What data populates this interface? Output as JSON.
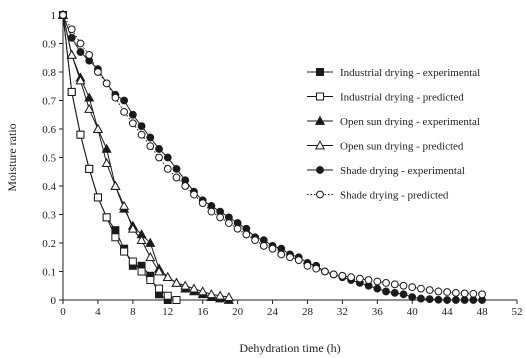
{
  "chart_data": {
    "type": "scatter",
    "title": "",
    "xlabel": "Dehydration time (h)",
    "ylabel": "Moisture ratio",
    "xlim": [
      0,
      52
    ],
    "ylim": [
      0,
      1
    ],
    "xticks": [
      0,
      4,
      8,
      12,
      16,
      20,
      24,
      28,
      32,
      36,
      40,
      44,
      48,
      52
    ],
    "yticks": [
      0,
      0.1,
      0.2,
      0.3,
      0.4,
      0.5,
      0.6,
      0.7,
      0.8,
      0.9,
      1
    ],
    "grid": false,
    "legend_position": "right",
    "series": [
      {
        "name": "Industrial drying - experimental",
        "marker": "square-filled",
        "line": "solid",
        "color": "#1a1a1a",
        "x": [
          0,
          1,
          2,
          3,
          4,
          5,
          6,
          7,
          8,
          9,
          10,
          11,
          12
        ],
        "y": [
          1.0,
          0.73,
          0.58,
          0.46,
          0.36,
          0.29,
          0.245,
          0.18,
          0.12,
          0.12,
          0.085,
          0.02,
          0.0
        ]
      },
      {
        "name": "Industrial drying - predicted",
        "marker": "square-open",
        "line": "solid",
        "color": "#1a1a1a",
        "x": [
          0,
          1,
          2,
          3,
          4,
          5,
          6,
          7,
          8,
          9,
          10,
          11,
          12,
          13
        ],
        "y": [
          1.0,
          0.73,
          0.58,
          0.46,
          0.36,
          0.29,
          0.22,
          0.17,
          0.135,
          0.1,
          0.07,
          0.04,
          0.015,
          0.0
        ]
      },
      {
        "name": "Open sun drying - experimental",
        "marker": "triangle-filled",
        "line": "solid",
        "color": "#1a1a1a",
        "x": [
          0,
          1,
          2,
          3,
          4,
          5,
          6,
          7,
          8,
          9,
          10,
          11,
          12,
          13,
          14,
          15,
          16,
          17,
          18,
          19
        ],
        "y": [
          1.0,
          0.86,
          0.78,
          0.71,
          0.6,
          0.53,
          0.4,
          0.32,
          0.26,
          0.23,
          0.2,
          0.11,
          0.08,
          0.06,
          0.04,
          0.03,
          0.02,
          0.01,
          0.005,
          0.0
        ]
      },
      {
        "name": "Open sun drying - predicted",
        "marker": "triangle-open",
        "line": "solid",
        "color": "#1a1a1a",
        "x": [
          0,
          1,
          2,
          3,
          4,
          5,
          6,
          7,
          8,
          9,
          10,
          11,
          12,
          13,
          14,
          15,
          16,
          17,
          18,
          19
        ],
        "y": [
          1.0,
          0.86,
          0.77,
          0.67,
          0.6,
          0.48,
          0.4,
          0.33,
          0.25,
          0.21,
          0.15,
          0.1,
          0.08,
          0.06,
          0.05,
          0.04,
          0.03,
          0.02,
          0.015,
          0.01
        ]
      },
      {
        "name": "Shade drying - experimental",
        "marker": "circle-filled",
        "line": "solid",
        "color": "#1a1a1a",
        "x": [
          0,
          1,
          2,
          3,
          4,
          5,
          6,
          7,
          8,
          9,
          10,
          11,
          12,
          13,
          14,
          15,
          16,
          17,
          18,
          19,
          20,
          21,
          22,
          23,
          24,
          25,
          26,
          27,
          28,
          29,
          30,
          31,
          32,
          33,
          34,
          35,
          36,
          37,
          38,
          39,
          40,
          41,
          42,
          43,
          44,
          45,
          46,
          47,
          48
        ],
        "y": [
          1.0,
          0.92,
          0.87,
          0.84,
          0.81,
          0.76,
          0.72,
          0.7,
          0.65,
          0.61,
          0.57,
          0.53,
          0.5,
          0.46,
          0.42,
          0.38,
          0.35,
          0.33,
          0.31,
          0.29,
          0.27,
          0.25,
          0.22,
          0.21,
          0.19,
          0.18,
          0.16,
          0.15,
          0.13,
          0.12,
          0.1,
          0.09,
          0.08,
          0.07,
          0.06,
          0.05,
          0.04,
          0.03,
          0.025,
          0.02,
          0.01,
          0.005,
          0.003,
          0.001,
          0.0,
          0.0,
          0.0,
          0.0,
          0.0
        ]
      },
      {
        "name": "Shade drying - predicted",
        "marker": "circle-open",
        "line": "dotted",
        "color": "#1a1a1a",
        "x": [
          0,
          1,
          2,
          3,
          4,
          5,
          6,
          7,
          8,
          9,
          10,
          11,
          12,
          13,
          14,
          15,
          16,
          17,
          18,
          19,
          20,
          21,
          22,
          23,
          24,
          25,
          26,
          27,
          28,
          29,
          30,
          31,
          32,
          33,
          34,
          35,
          36,
          37,
          38,
          39,
          40,
          41,
          42,
          43,
          44,
          45,
          46,
          47,
          48
        ],
        "y": [
          1.0,
          0.95,
          0.9,
          0.86,
          0.8,
          0.76,
          0.71,
          0.66,
          0.62,
          0.58,
          0.54,
          0.5,
          0.46,
          0.43,
          0.4,
          0.37,
          0.34,
          0.31,
          0.29,
          0.27,
          0.25,
          0.23,
          0.21,
          0.19,
          0.18,
          0.16,
          0.15,
          0.14,
          0.12,
          0.11,
          0.1,
          0.09,
          0.085,
          0.08,
          0.075,
          0.07,
          0.065,
          0.06,
          0.055,
          0.05,
          0.045,
          0.04,
          0.035,
          0.03,
          0.028,
          0.025,
          0.023,
          0.022,
          0.02
        ]
      }
    ]
  }
}
